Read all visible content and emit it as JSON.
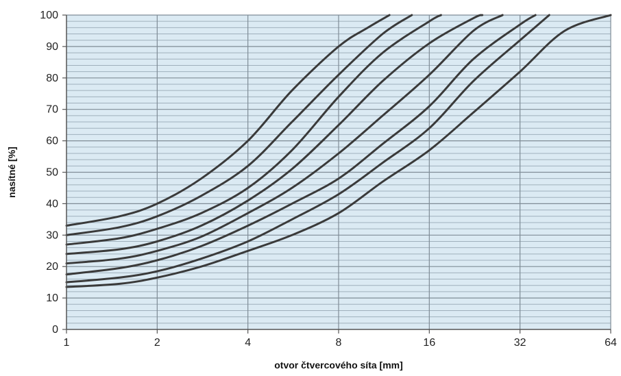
{
  "chart_data": {
    "type": "line",
    "xlabel": "otvor čtvercového síta [mm]",
    "ylabel": "nasítné [%]",
    "x_scale": "log2",
    "xlim": [
      1,
      64
    ],
    "ylim": [
      0,
      100
    ],
    "x_ticks": [
      "1",
      "2",
      "4",
      "8",
      "16",
      "32",
      "64"
    ],
    "y_ticks": [
      "0",
      "10",
      "20",
      "30",
      "40",
      "50",
      "60",
      "70",
      "80",
      "90",
      "100"
    ],
    "grid": "on",
    "plot_background": "#dbeaf3",
    "minor_grid_color": "#9fb0bc",
    "major_grid_color": "#7f8c96",
    "series_color": "#3a3a3a",
    "series": [
      {
        "x": [
          1,
          1.5,
          2,
          2.8,
          4,
          5.6,
          8,
          10,
          11.8
        ],
        "y": [
          33,
          36,
          40,
          48,
          60,
          76,
          90,
          96,
          100
        ]
      },
      {
        "x": [
          1,
          1.5,
          2,
          2.8,
          4,
          5.6,
          8,
          11.2,
          14
        ],
        "y": [
          30,
          32.5,
          36,
          42.5,
          52,
          66,
          81,
          94,
          100
        ]
      },
      {
        "x": [
          1,
          1.5,
          2,
          2.8,
          4,
          5.6,
          8,
          11.2,
          16,
          17.5
        ],
        "y": [
          27,
          29,
          32,
          37,
          45,
          57,
          74,
          88,
          98,
          100
        ]
      },
      {
        "x": [
          1,
          1.5,
          2,
          2.8,
          4,
          5.6,
          8,
          11.2,
          16,
          22.4,
          24
        ],
        "y": [
          24,
          25.5,
          28,
          33,
          41,
          51,
          65,
          79,
          91,
          99,
          100
        ]
      },
      {
        "x": [
          1,
          1.5,
          2,
          2.8,
          4,
          5.6,
          8,
          11.2,
          16,
          22.4,
          28
        ],
        "y": [
          21,
          22.5,
          25,
          29.5,
          37,
          45,
          56,
          68,
          81,
          95,
          100
        ]
      },
      {
        "x": [
          1,
          1.5,
          2,
          2.8,
          4,
          5.6,
          8,
          11.2,
          16,
          22.4,
          32,
          36
        ],
        "y": [
          17.5,
          19.5,
          22,
          26.5,
          33,
          40,
          48,
          59,
          71,
          86,
          97,
          100
        ]
      },
      {
        "x": [
          1,
          1.5,
          2,
          2.8,
          4,
          5.6,
          8,
          11.2,
          16,
          22.4,
          32,
          40
        ],
        "y": [
          15,
          16.5,
          18.5,
          22.5,
          28,
          35,
          43,
          53,
          64,
          79,
          92,
          100
        ]
      },
      {
        "x": [
          1,
          1.5,
          2,
          2.8,
          4,
          5.6,
          8,
          11.2,
          16,
          22.4,
          32,
          45,
          64
        ],
        "y": [
          13.5,
          14.5,
          16.5,
          20,
          25,
          30,
          37,
          47,
          57,
          69,
          82,
          95,
          100
        ]
      }
    ]
  }
}
